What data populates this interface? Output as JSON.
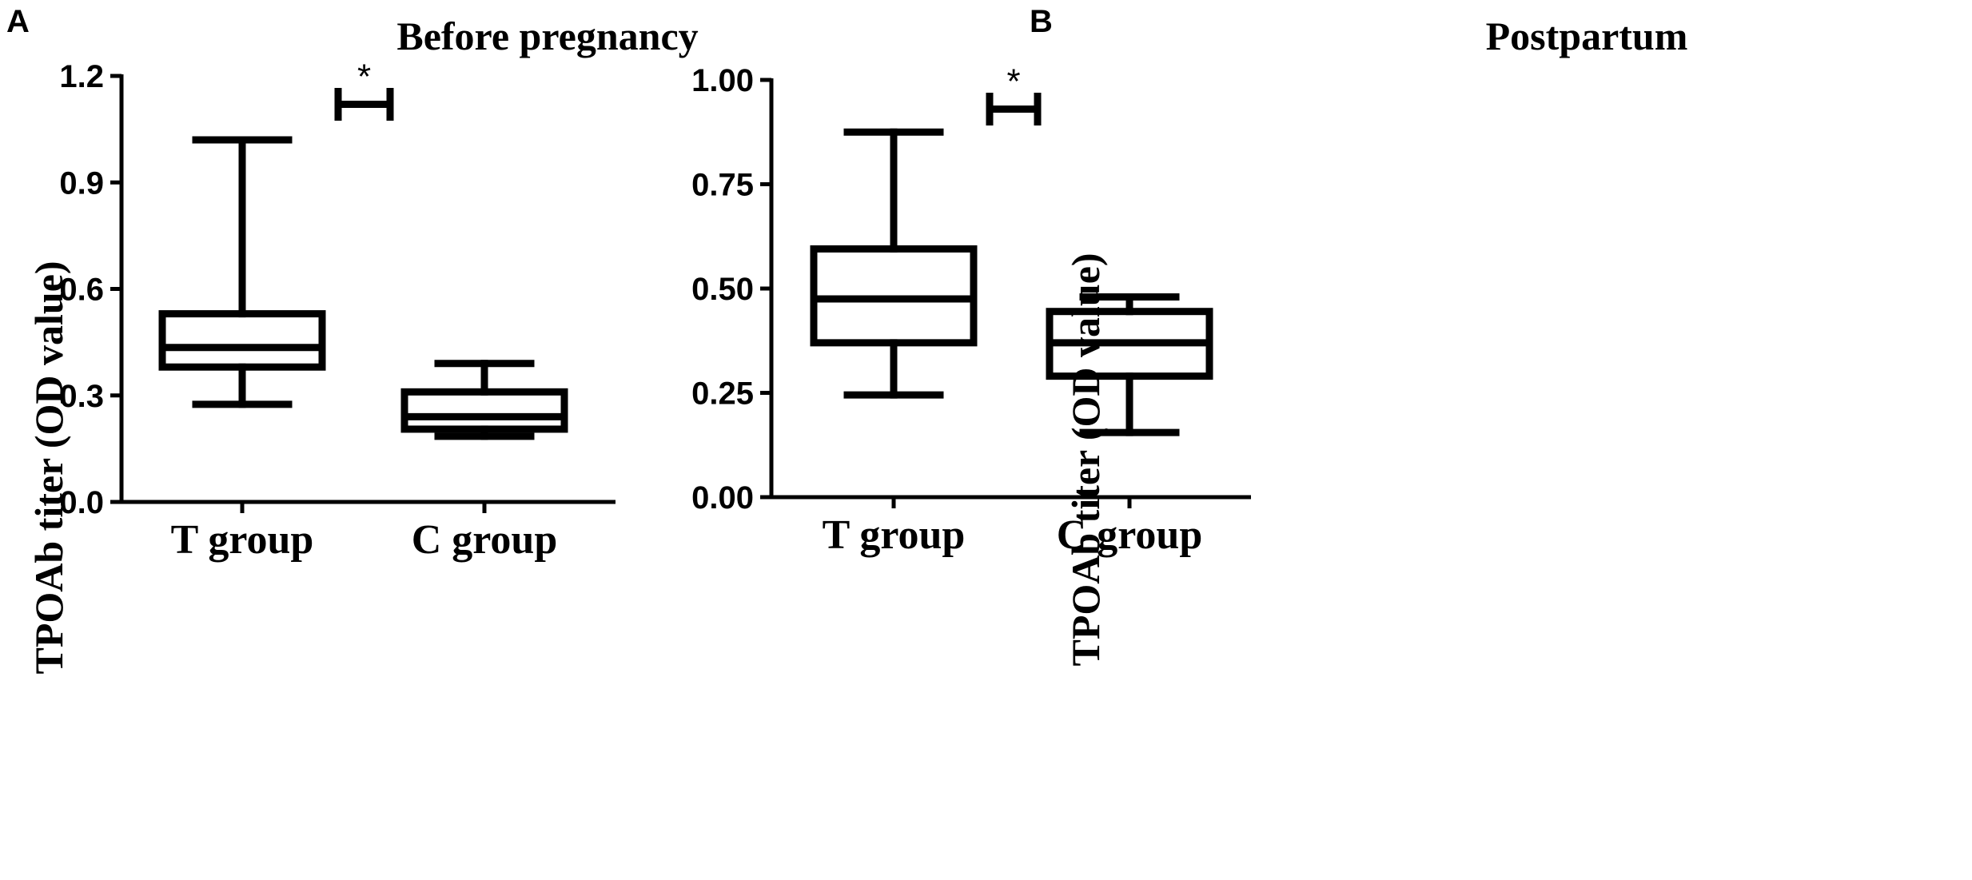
{
  "chart_data": [
    {
      "type": "box",
      "panel_label": "A",
      "title": "Before pregnancy",
      "ylabel": "TPOAb titer (OD value)",
      "xlabel": "",
      "ylim": [
        0,
        1.2
      ],
      "yticks": [
        0.0,
        0.3,
        0.6,
        0.9,
        1.2
      ],
      "ytick_labels": [
        "0.0",
        "0.3",
        "0.6",
        "0.9",
        "1.2"
      ],
      "categories": [
        "T group",
        "C group"
      ],
      "boxes": [
        {
          "name": "T group",
          "min": 0.275,
          "q1": 0.38,
          "median": 0.435,
          "q3": 0.53,
          "max": 1.02
        },
        {
          "name": "C group",
          "min": 0.185,
          "q1": 0.205,
          "median": 0.24,
          "q3": 0.31,
          "max": 0.39
        }
      ],
      "significance": {
        "label": "*",
        "bracket_y": 1.12
      }
    },
    {
      "type": "box",
      "panel_label": "B",
      "title": "Postpartum",
      "ylabel": "TPOAb titer (OD value)",
      "xlabel": "",
      "ylim": [
        0,
        1.0
      ],
      "yticks": [
        0.0,
        0.25,
        0.5,
        0.75,
        1.0
      ],
      "ytick_labels": [
        "0.00",
        "0.25",
        "0.50",
        "0.75",
        "1.00"
      ],
      "categories": [
        "T group",
        "C group"
      ],
      "boxes": [
        {
          "name": "T group",
          "min": 0.245,
          "q1": 0.37,
          "median": 0.475,
          "q3": 0.595,
          "max": 0.875
        },
        {
          "name": "C group",
          "min": 0.155,
          "q1": 0.29,
          "median": 0.37,
          "q3": 0.445,
          "max": 0.48
        }
      ],
      "significance": {
        "label": "*",
        "bracket_y": 0.93
      }
    }
  ]
}
